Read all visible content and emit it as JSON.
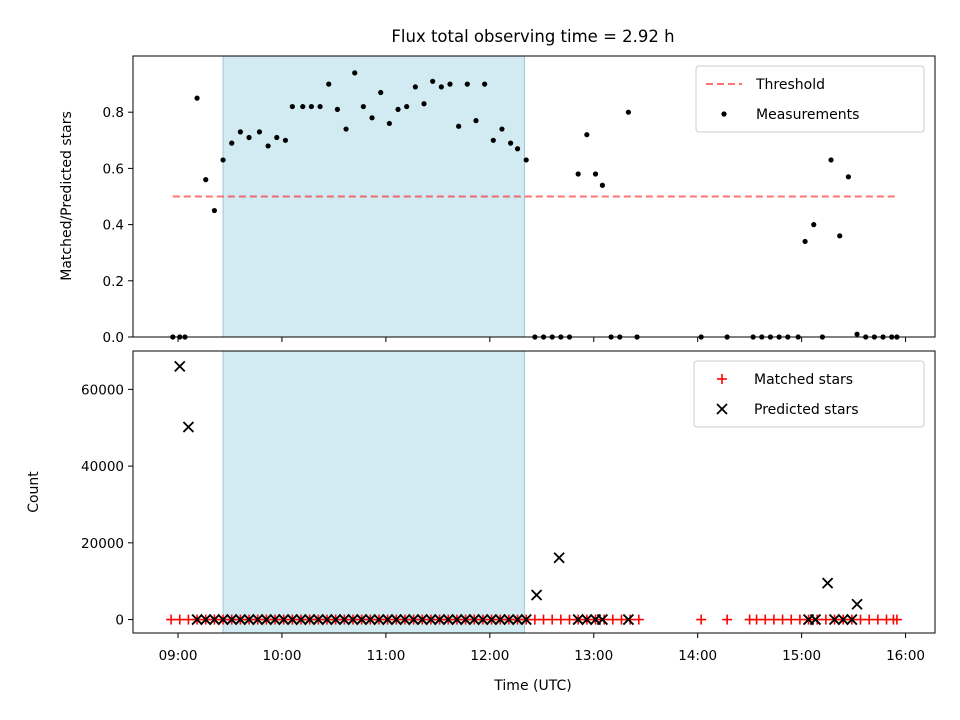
{
  "colors": {
    "shade": "#add8e6",
    "threshold": "#ff0000",
    "measurement": "#000000",
    "matched": "#ff0000",
    "predicted": "#000000"
  },
  "chart_data": [
    {
      "type": "scatter",
      "title": "Flux total observing time = 2.92 h",
      "xlabel": "",
      "ylabel": "Matched/Predicted stars",
      "xlim": [
        "08:34",
        "16:17"
      ],
      "ylim": [
        0,
        1.0
      ],
      "xticks": [
        "09:00",
        "10:00",
        "11:00",
        "12:00",
        "13:00",
        "14:00",
        "15:00",
        "16:00"
      ],
      "yticks": [
        0.0,
        0.2,
        0.4,
        0.6,
        0.8
      ],
      "ytick_labels": [
        "0.0",
        "0.2",
        "0.4",
        "0.6",
        "0.8"
      ],
      "grid": false,
      "legend": "top-right",
      "shaded_span": [
        "09:26",
        "12:20"
      ],
      "threshold": {
        "name": "Threshold",
        "y": 0.5,
        "x_range": [
          "08:57",
          "15:56"
        ],
        "style": "dashed"
      },
      "series": [
        {
          "name": "Measurements",
          "marker": "dot",
          "points": [
            [
              "08:57",
              0
            ],
            [
              "09:01",
              0
            ],
            [
              "09:04",
              0
            ],
            [
              "09:11",
              0.85
            ],
            [
              "09:16",
              0.56
            ],
            [
              "09:21",
              0.45
            ],
            [
              "09:26",
              0.63
            ],
            [
              "09:31",
              0.69
            ],
            [
              "09:36",
              0.73
            ],
            [
              "09:41",
              0.71
            ],
            [
              "09:47",
              0.73
            ],
            [
              "09:52",
              0.68
            ],
            [
              "09:57",
              0.71
            ],
            [
              "10:02",
              0.7
            ],
            [
              "10:06",
              0.82
            ],
            [
              "10:12",
              0.82
            ],
            [
              "10:17",
              0.82
            ],
            [
              "10:22",
              0.82
            ],
            [
              "10:27",
              0.9
            ],
            [
              "10:32",
              0.81
            ],
            [
              "10:37",
              0.74
            ],
            [
              "10:42",
              0.94
            ],
            [
              "10:47",
              0.82
            ],
            [
              "10:52",
              0.78
            ],
            [
              "10:57",
              0.87
            ],
            [
              "11:02",
              0.76
            ],
            [
              "11:07",
              0.81
            ],
            [
              "11:12",
              0.82
            ],
            [
              "11:17",
              0.89
            ],
            [
              "11:22",
              0.83
            ],
            [
              "11:27",
              0.91
            ],
            [
              "11:32",
              0.89
            ],
            [
              "11:37",
              0.9
            ],
            [
              "11:42",
              0.75
            ],
            [
              "11:47",
              0.9
            ],
            [
              "11:52",
              0.77
            ],
            [
              "11:57",
              0.9
            ],
            [
              "12:02",
              0.7
            ],
            [
              "12:07",
              0.74
            ],
            [
              "12:12",
              0.69
            ],
            [
              "12:16",
              0.67
            ],
            [
              "12:21",
              0.63
            ],
            [
              "12:26",
              0
            ],
            [
              "12:31",
              0
            ],
            [
              "12:36",
              0
            ],
            [
              "12:41",
              0
            ],
            [
              "12:46",
              0
            ],
            [
              "12:51",
              0.58
            ],
            [
              "12:56",
              0.72
            ],
            [
              "13:01",
              0.58
            ],
            [
              "13:05",
              0.54
            ],
            [
              "13:10",
              0
            ],
            [
              "13:15",
              0
            ],
            [
              "13:20",
              0.8
            ],
            [
              "13:25",
              0
            ],
            [
              "14:02",
              0
            ],
            [
              "14:17",
              0
            ],
            [
              "14:32",
              0
            ],
            [
              "14:37",
              0
            ],
            [
              "14:42",
              0
            ],
            [
              "14:47",
              0
            ],
            [
              "14:52",
              0
            ],
            [
              "14:58",
              0
            ],
            [
              "15:02",
              0.34
            ],
            [
              "15:07",
              0.4
            ],
            [
              "15:12",
              0
            ],
            [
              "15:17",
              0.63
            ],
            [
              "15:22",
              0.36
            ],
            [
              "15:27",
              0.57
            ],
            [
              "15:32",
              0.01
            ],
            [
              "15:37",
              0
            ],
            [
              "15:42",
              0
            ],
            [
              "15:47",
              0
            ],
            [
              "15:52",
              0
            ],
            [
              "15:55",
              0
            ]
          ]
        }
      ]
    },
    {
      "type": "scatter",
      "title": "",
      "xlabel": "Time (UTC)",
      "ylabel": "Count",
      "xlim": [
        "08:34",
        "16:17"
      ],
      "ylim": [
        -3500,
        70000
      ],
      "xticks": [
        "09:00",
        "10:00",
        "11:00",
        "12:00",
        "13:00",
        "14:00",
        "15:00",
        "16:00"
      ],
      "yticks": [
        0,
        20000,
        40000,
        60000
      ],
      "ytick_labels": [
        "0",
        "20000",
        "40000",
        "60000"
      ],
      "grid": false,
      "legend": "top-right",
      "shaded_span": [
        "09:26",
        "12:20"
      ],
      "series": [
        {
          "name": "Matched stars",
          "marker": "plus",
          "points": [
            [
              "08:56",
              0
            ],
            [
              "09:01",
              0
            ],
            [
              "09:06",
              0
            ],
            [
              "09:11",
              0
            ],
            [
              "09:16",
              0
            ],
            [
              "09:21",
              0
            ],
            [
              "09:26",
              0
            ],
            [
              "09:31",
              0
            ],
            [
              "09:36",
              0
            ],
            [
              "09:41",
              0
            ],
            [
              "09:46",
              0
            ],
            [
              "09:51",
              0
            ],
            [
              "09:56",
              0
            ],
            [
              "10:01",
              0
            ],
            [
              "10:06",
              0
            ],
            [
              "10:11",
              0
            ],
            [
              "10:16",
              0
            ],
            [
              "10:21",
              0
            ],
            [
              "10:26",
              0
            ],
            [
              "10:31",
              0
            ],
            [
              "10:36",
              0
            ],
            [
              "10:41",
              0
            ],
            [
              "10:46",
              0
            ],
            [
              "10:51",
              0
            ],
            [
              "10:56",
              0
            ],
            [
              "11:01",
              0
            ],
            [
              "11:06",
              0
            ],
            [
              "11:11",
              0
            ],
            [
              "11:16",
              0
            ],
            [
              "11:21",
              0
            ],
            [
              "11:26",
              0
            ],
            [
              "11:31",
              0
            ],
            [
              "11:36",
              0
            ],
            [
              "11:41",
              0
            ],
            [
              "11:46",
              0
            ],
            [
              "11:51",
              0
            ],
            [
              "11:56",
              0
            ],
            [
              "12:01",
              0
            ],
            [
              "12:06",
              0
            ],
            [
              "12:11",
              0
            ],
            [
              "12:16",
              0
            ],
            [
              "12:21",
              0
            ],
            [
              "12:26",
              0
            ],
            [
              "12:31",
              0
            ],
            [
              "12:36",
              0
            ],
            [
              "12:41",
              0
            ],
            [
              "12:46",
              0
            ],
            [
              "12:51",
              0
            ],
            [
              "12:56",
              0
            ],
            [
              "13:01",
              0
            ],
            [
              "13:06",
              0
            ],
            [
              "13:11",
              0
            ],
            [
              "13:16",
              0
            ],
            [
              "13:21",
              0
            ],
            [
              "13:26",
              0
            ],
            [
              "14:02",
              0
            ],
            [
              "14:17",
              0
            ],
            [
              "14:30",
              0
            ],
            [
              "14:34",
              0
            ],
            [
              "14:39",
              0
            ],
            [
              "14:44",
              0
            ],
            [
              "14:49",
              0
            ],
            [
              "14:54",
              0
            ],
            [
              "14:59",
              0
            ],
            [
              "15:04",
              0
            ],
            [
              "15:09",
              0
            ],
            [
              "15:14",
              0
            ],
            [
              "15:19",
              0
            ],
            [
              "15:24",
              0
            ],
            [
              "15:29",
              0
            ],
            [
              "15:34",
              0
            ],
            [
              "15:39",
              0
            ],
            [
              "15:44",
              0
            ],
            [
              "15:49",
              0
            ],
            [
              "15:53",
              0
            ],
            [
              "15:55",
              0
            ]
          ]
        },
        {
          "name": "Predicted stars",
          "marker": "x",
          "points": [
            [
              "09:01",
              66000
            ],
            [
              "09:06",
              50200
            ],
            [
              "09:11",
              0
            ],
            [
              "09:16",
              0
            ],
            [
              "09:21",
              0
            ],
            [
              "09:26",
              0
            ],
            [
              "09:31",
              0
            ],
            [
              "09:36",
              0
            ],
            [
              "09:41",
              0
            ],
            [
              "09:46",
              0
            ],
            [
              "09:51",
              0
            ],
            [
              "09:56",
              0
            ],
            [
              "10:01",
              0
            ],
            [
              "10:06",
              0
            ],
            [
              "10:11",
              0
            ],
            [
              "10:16",
              0
            ],
            [
              "10:21",
              0
            ],
            [
              "10:26",
              0
            ],
            [
              "10:31",
              0
            ],
            [
              "10:36",
              0
            ],
            [
              "10:41",
              0
            ],
            [
              "10:46",
              0
            ],
            [
              "10:51",
              0
            ],
            [
              "10:56",
              0
            ],
            [
              "11:01",
              0
            ],
            [
              "11:06",
              0
            ],
            [
              "11:11",
              0
            ],
            [
              "11:16",
              0
            ],
            [
              "11:21",
              0
            ],
            [
              "11:26",
              0
            ],
            [
              "11:31",
              0
            ],
            [
              "11:36",
              0
            ],
            [
              "11:41",
              0
            ],
            [
              "11:46",
              0
            ],
            [
              "11:51",
              0
            ],
            [
              "11:56",
              0
            ],
            [
              "12:01",
              0
            ],
            [
              "12:06",
              0
            ],
            [
              "12:11",
              0
            ],
            [
              "12:16",
              0
            ],
            [
              "12:21",
              0
            ],
            [
              "12:27",
              6400
            ],
            [
              "12:40",
              16100
            ],
            [
              "12:51",
              0
            ],
            [
              "12:56",
              0
            ],
            [
              "13:01",
              0
            ],
            [
              "13:05",
              0
            ],
            [
              "13:20",
              0
            ],
            [
              "15:04",
              0
            ],
            [
              "15:08",
              0
            ],
            [
              "15:15",
              9500
            ],
            [
              "15:19",
              0
            ],
            [
              "15:24",
              0
            ],
            [
              "15:29",
              0
            ],
            [
              "15:32",
              4000
            ]
          ]
        }
      ]
    }
  ]
}
